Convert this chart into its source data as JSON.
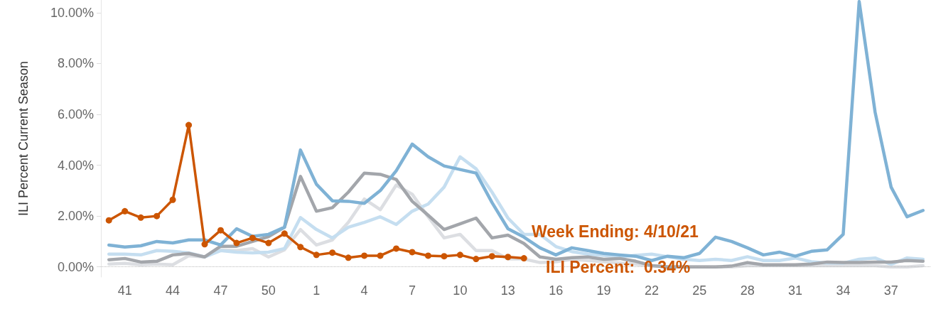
{
  "chart_data": {
    "type": "line",
    "ylabel": "ILI Percent Current Season",
    "categories": [
      null,
      "41",
      null,
      null,
      "44",
      null,
      null,
      "47",
      null,
      null,
      "50",
      null,
      null,
      "1",
      null,
      null,
      "4",
      null,
      null,
      "7",
      null,
      null,
      "10",
      null,
      null,
      "13",
      null,
      null,
      "16",
      null,
      null,
      "19",
      null,
      null,
      "22",
      null,
      null,
      "25",
      null,
      null,
      "28",
      null,
      null,
      "31",
      null,
      null,
      "34",
      null,
      null,
      "37",
      null,
      null
    ],
    "ylim": [
      -0.4,
      10.5
    ],
    "yticks": [
      {
        "value": 0,
        "label": "0.00%"
      },
      {
        "value": 2,
        "label": "2.00%"
      },
      {
        "value": 4,
        "label": "4.00%"
      },
      {
        "value": 6,
        "label": "6.00%"
      },
      {
        "value": 8,
        "label": "8.00%"
      },
      {
        "value": 10,
        "label": "10.00%"
      }
    ],
    "grid": false,
    "ref_lines": [
      {
        "axis": "y",
        "value": 0,
        "color": "#bbbbbb",
        "line_style": "dotted"
      }
    ],
    "annotations": [
      "Week Ending: 4/10/21",
      "ILI Percent:  0.34%"
    ],
    "series": [
      {
        "color": "#dcdee2",
        "marker": "none",
        "values": [
          0.11,
          0.14,
          0.08,
          0.11,
          0.08,
          0.44,
          0.39,
          0.67,
          0.64,
          0.72,
          0.39,
          0.67,
          1.47,
          0.86,
          1.06,
          1.75,
          2.67,
          2.25,
          3.22,
          2.86,
          1.97,
          1.14,
          1.28,
          0.64,
          0.64,
          0.31,
          0.31,
          0.17,
          0.2,
          0.3,
          0.25,
          0.2,
          0.15,
          0.1,
          0.05,
          0,
          0,
          0,
          0,
          0,
          0.05,
          0.05,
          0.05,
          0.05,
          0.05,
          0.05,
          0.05,
          0.05,
          0.05,
          0,
          0,
          0.05
        ]
      },
      {
        "color": "#c5def0",
        "marker": "none",
        "values": [
          0.5,
          0.5,
          0.47,
          0.64,
          0.61,
          0.55,
          0.39,
          0.64,
          0.58,
          0.55,
          0.58,
          0.72,
          1.94,
          1.47,
          1.14,
          1.56,
          1.75,
          1.97,
          1.67,
          2.19,
          2.47,
          3.14,
          4.33,
          3.86,
          2.94,
          1.92,
          1.28,
          1.28,
          0.8,
          0.6,
          0.5,
          0.45,
          0.4,
          0.45,
          0.5,
          0.4,
          0.3,
          0.25,
          0.3,
          0.25,
          0.4,
          0.25,
          0.25,
          0.35,
          0.2,
          0.15,
          0.15,
          0.3,
          0.35,
          0.1,
          0.35,
          0.3
        ]
      },
      {
        "color": "#a3a6ab",
        "marker": "none",
        "values": [
          0.28,
          0.33,
          0.19,
          0.22,
          0.47,
          0.53,
          0.39,
          0.81,
          0.81,
          1.0,
          1.19,
          1.56,
          3.56,
          2.19,
          2.33,
          2.94,
          3.69,
          3.64,
          3.44,
          2.58,
          2.03,
          1.47,
          1.69,
          1.92,
          1.14,
          1.25,
          0.92,
          0.39,
          0.3,
          0.36,
          0.39,
          0.3,
          0.33,
          0.22,
          0.05,
          0,
          0,
          0,
          0,
          0.03,
          0.17,
          0.08,
          0.08,
          0.08,
          0.11,
          0.19,
          0.17,
          0.17,
          0.19,
          0.19,
          0.25,
          0.22
        ]
      },
      {
        "color": "#7fb2d5",
        "marker": "none",
        "values": [
          0.86,
          0.78,
          0.83,
          1.0,
          0.94,
          1.06,
          1.06,
          0.86,
          1.5,
          1.2,
          1.28,
          1.56,
          4.6,
          3.25,
          2.6,
          2.58,
          2.5,
          3.0,
          3.78,
          4.83,
          4.33,
          3.97,
          3.83,
          3.69,
          2.53,
          1.5,
          1.17,
          0.75,
          0.47,
          0.75,
          0.64,
          0.53,
          0.47,
          0.42,
          0.25,
          0.42,
          0.36,
          0.53,
          1.17,
          1.0,
          0.75,
          0.47,
          0.58,
          0.42,
          0.61,
          0.67,
          1.28,
          10.44,
          6.08,
          3.14,
          1.97,
          2.22
        ]
      },
      {
        "color": "#cc5500",
        "marker": "circle",
        "values": [
          1.83,
          2.19,
          1.94,
          2.0,
          2.64,
          5.58,
          0.89,
          1.44,
          0.94,
          1.14,
          0.94,
          1.31,
          0.78,
          0.47,
          0.56,
          0.36,
          0.44,
          0.44,
          0.72,
          0.58,
          0.44,
          0.42,
          0.47,
          0.31,
          0.42,
          0.39,
          0.34,
          null,
          null,
          null,
          null,
          null,
          null,
          null,
          null,
          null,
          null,
          null,
          null,
          null,
          null,
          null,
          null,
          null,
          null,
          null,
          null,
          null,
          null,
          null,
          null,
          null
        ]
      }
    ]
  }
}
